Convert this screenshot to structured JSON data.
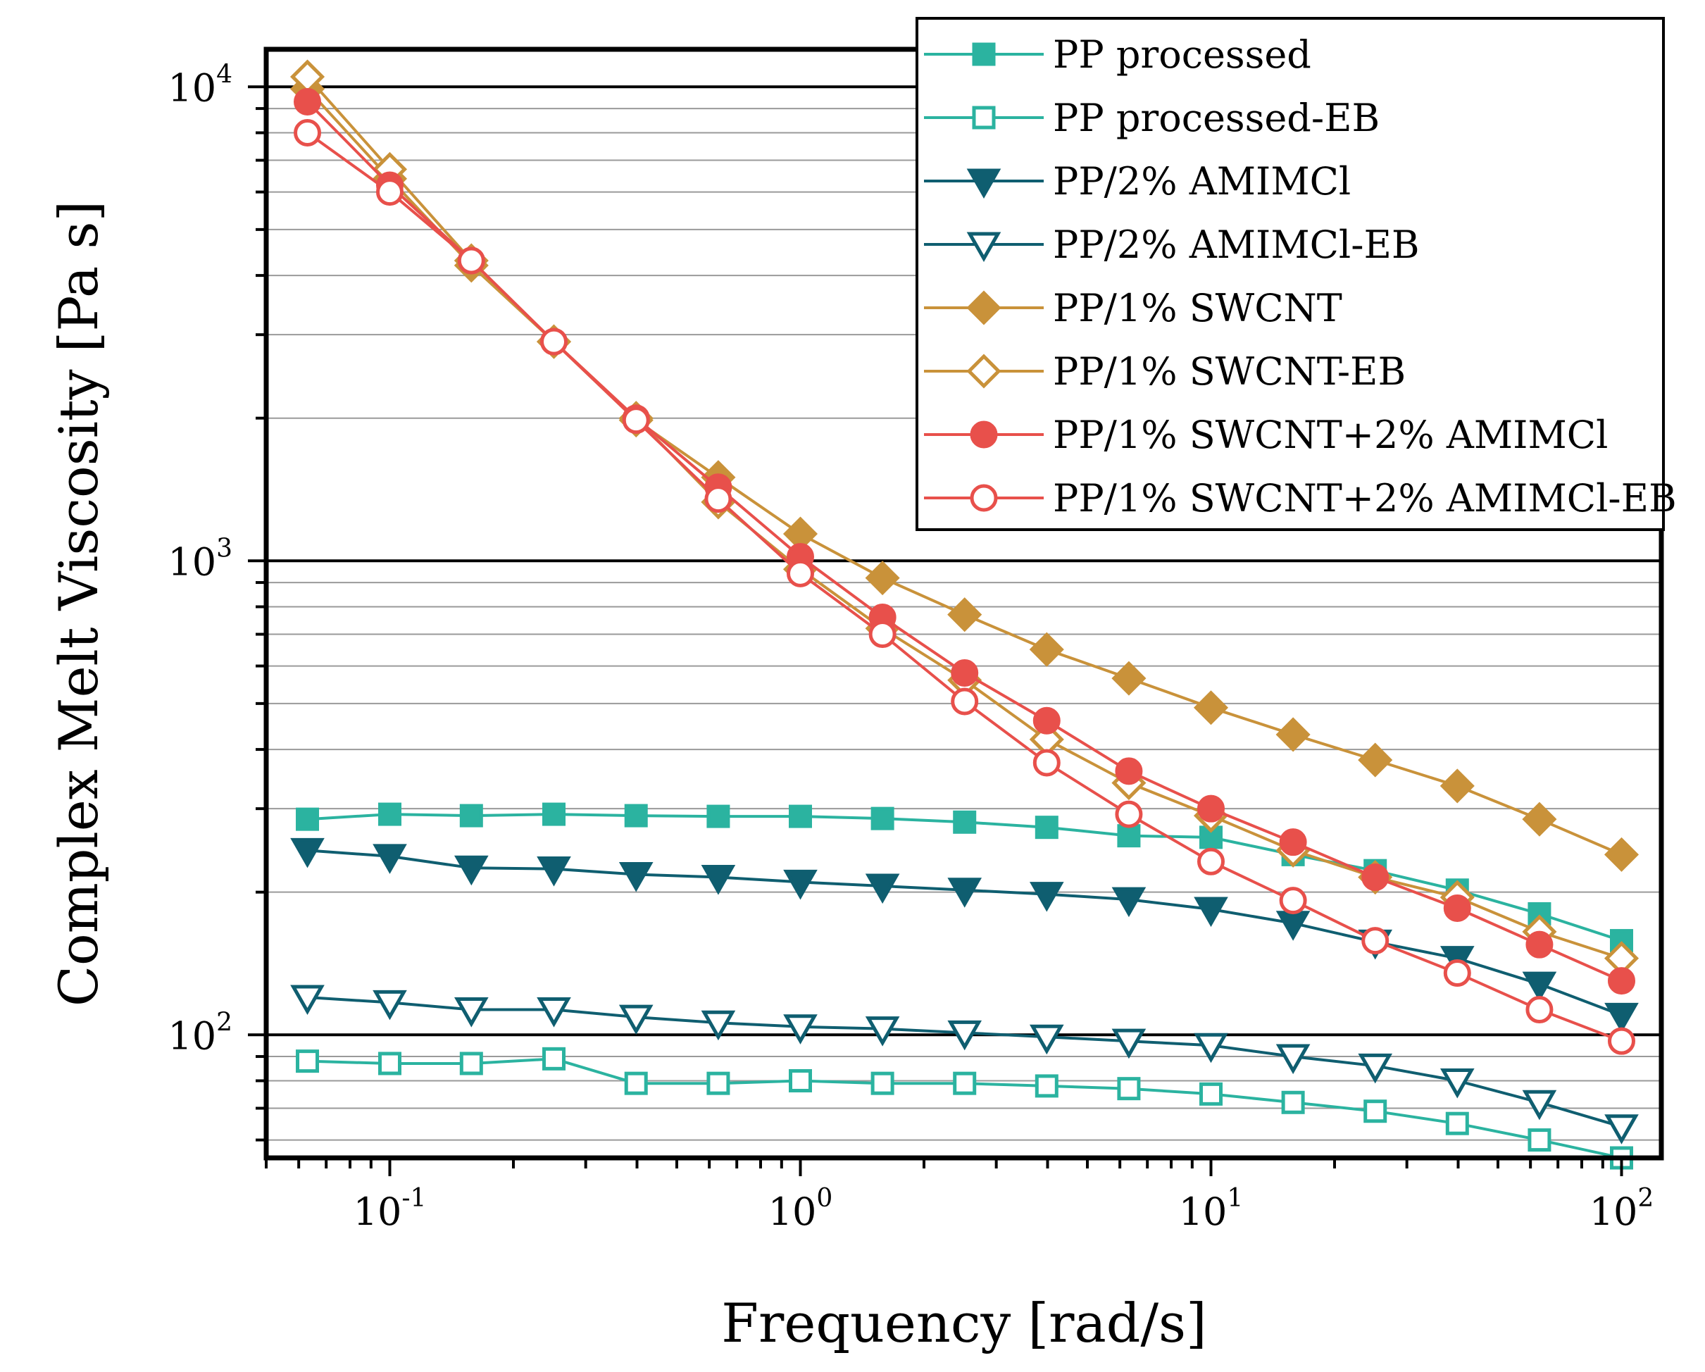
{
  "chart_data": {
    "type": "line",
    "xlabel": "Frequency [rad/s]",
    "ylabel": "Complex Melt Viscosity [Pa s]",
    "xscale": "log",
    "yscale": "log",
    "xlim": [
      0.05,
      125
    ],
    "ylim": [
      55,
      12000
    ],
    "x_ticks": [
      {
        "base": "10",
        "exp": "-1",
        "value": 0.1
      },
      {
        "base": "10",
        "exp": "0",
        "value": 1
      },
      {
        "base": "10",
        "exp": "1",
        "value": 10
      },
      {
        "base": "10",
        "exp": "2",
        "value": 100
      }
    ],
    "y_ticks": [
      {
        "base": "10",
        "exp": "2",
        "value": 100
      },
      {
        "base": "10",
        "exp": "3",
        "value": 1000
      },
      {
        "base": "10",
        "exp": "4",
        "value": 10000
      }
    ],
    "legend_position": "top-right",
    "x": [
      0.063,
      0.1,
      0.158,
      0.251,
      0.398,
      0.631,
      1.0,
      1.585,
      2.512,
      3.981,
      6.31,
      10.0,
      15.85,
      25.12,
      39.81,
      63.1,
      100.0
    ],
    "series": [
      {
        "name": "PP processed",
        "color": "#2bb3a0",
        "marker": "square",
        "filled": true,
        "values": [
          285,
          292,
          290,
          292,
          290,
          289,
          289,
          286,
          281,
          274,
          263,
          261,
          240,
          222,
          202,
          180,
          158
        ]
      },
      {
        "name": "PP processed-EB",
        "color": "#2bb3a0",
        "marker": "square",
        "filled": false,
        "values": [
          88,
          87,
          87,
          89,
          79,
          79,
          80,
          79,
          79,
          78,
          77,
          75,
          72,
          69,
          65,
          60,
          55
        ]
      },
      {
        "name": "PP/2% AMIMCl",
        "color": "#0f5e70",
        "marker": "triangle-down",
        "filled": true,
        "values": [
          245,
          238,
          225,
          224,
          218,
          215,
          210,
          206,
          202,
          198,
          193,
          184,
          172,
          157,
          145,
          128,
          110
        ]
      },
      {
        "name": "PP/2% AMIMCl-EB",
        "color": "#0f5e70",
        "marker": "triangle-down",
        "filled": false,
        "values": [
          120,
          117,
          113,
          113,
          109,
          106,
          104,
          103,
          101,
          99,
          97,
          95,
          90,
          86,
          80,
          72,
          64
        ]
      },
      {
        "name": "PP/1% SWCNT",
        "color": "#c9923a",
        "marker": "diamond",
        "filled": true,
        "values": [
          9900,
          6400,
          4200,
          2900,
          1980,
          1500,
          1140,
          920,
          770,
          650,
          565,
          490,
          430,
          380,
          335,
          285,
          240
        ]
      },
      {
        "name": "PP/1% SWCNT-EB",
        "color": "#c9923a",
        "marker": "diamond",
        "filled": false,
        "values": [
          10500,
          6700,
          4300,
          2900,
          2000,
          1330,
          960,
          720,
          560,
          420,
          340,
          290,
          245,
          215,
          195,
          165,
          145
        ]
      },
      {
        "name": "PP/1% SWCNT+2% AMIMCl",
        "color": "#e8504b",
        "marker": "circle",
        "filled": true,
        "values": [
          9300,
          6200,
          4300,
          2900,
          2000,
          1430,
          1020,
          760,
          580,
          460,
          360,
          300,
          255,
          215,
          185,
          155,
          130
        ]
      },
      {
        "name": "PP/1% SWCNT+2% AMIMCl-EB",
        "color": "#e8504b",
        "marker": "circle",
        "filled": false,
        "values": [
          8000,
          6000,
          4300,
          2900,
          1980,
          1350,
          940,
          700,
          505,
          375,
          292,
          232,
          192,
          158,
          135,
          113,
          97
        ]
      }
    ]
  }
}
